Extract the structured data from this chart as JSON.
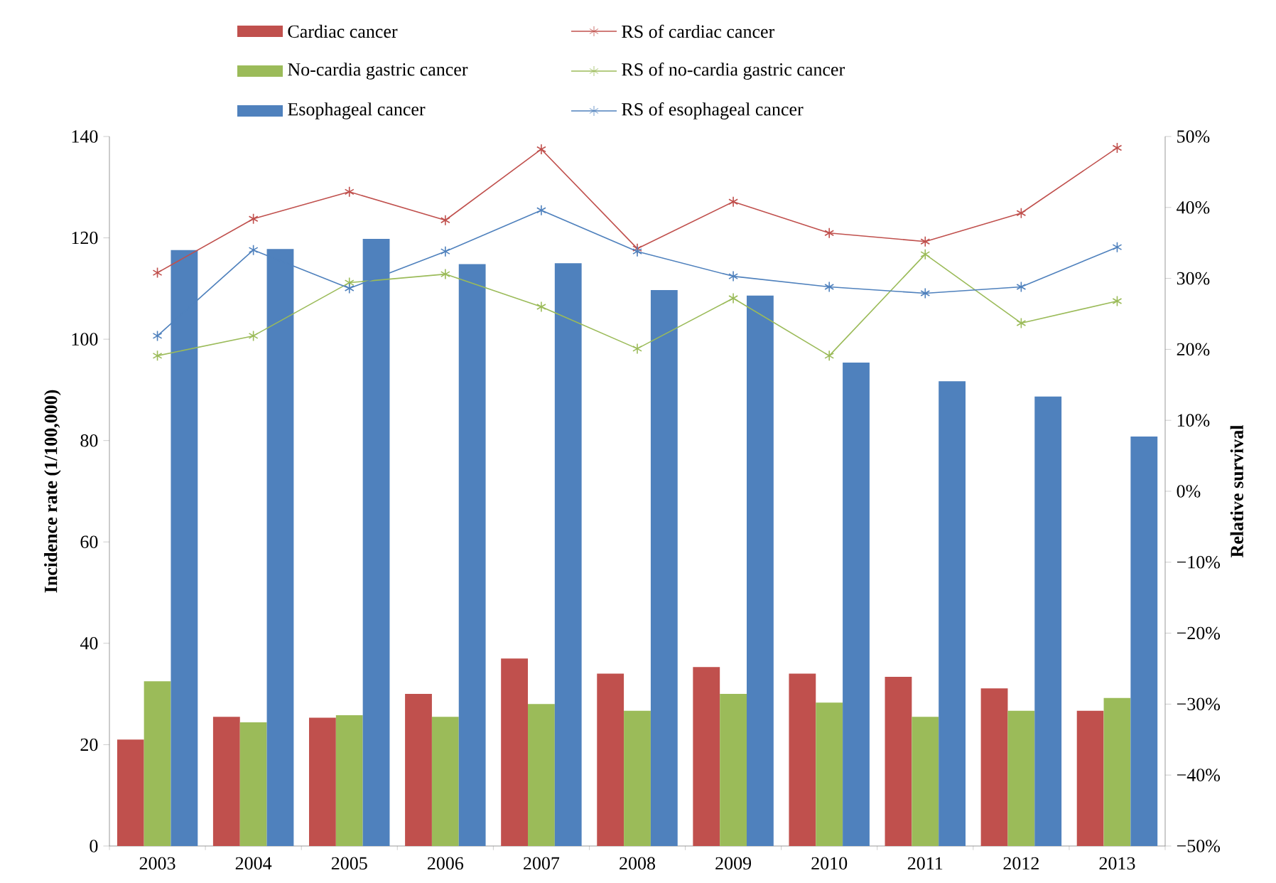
{
  "chart_data": {
    "type": "bar",
    "categories": [
      "2003",
      "2004",
      "2005",
      "2006",
      "2007",
      "2008",
      "2009",
      "2010",
      "2011",
      "2012",
      "2013"
    ],
    "ylabel": "Incidence rate (1/100,000)",
    "y2label": "Relative survival",
    "ylim": [
      0,
      140
    ],
    "yticks": [
      0,
      20,
      40,
      60,
      80,
      100,
      120,
      140
    ],
    "y2lim": [
      -50,
      50
    ],
    "y2ticks": [
      {
        "value": -50,
        "label": "−50%"
      },
      {
        "value": -40,
        "label": "−40%"
      },
      {
        "value": -30,
        "label": "−30%"
      },
      {
        "value": -20,
        "label": "−20%"
      },
      {
        "value": -10,
        "label": "−10%"
      },
      {
        "value": 0,
        "label": "0%"
      },
      {
        "value": 10,
        "label": "10%"
      },
      {
        "value": 20,
        "label": "20%"
      },
      {
        "value": 30,
        "label": "30%"
      },
      {
        "value": 40,
        "label": "40%"
      },
      {
        "value": 50,
        "label": "50%"
      }
    ],
    "legend": "top",
    "grid": false,
    "marker": "cross",
    "series": [
      {
        "name": "Cardiac cancer",
        "type": "bar",
        "color": "#c0504d",
        "values": [
          21.0,
          25.5,
          25.3,
          30.0,
          37.0,
          34.0,
          35.3,
          34.0,
          33.4,
          31.1,
          26.7
        ]
      },
      {
        "name": "No-cardia gastric cancer",
        "type": "bar",
        "color": "#9bbb59",
        "values": [
          32.5,
          24.4,
          25.8,
          25.5,
          28.0,
          26.7,
          30.0,
          28.3,
          25.5,
          26.7,
          29.2
        ]
      },
      {
        "name": "Esophageal cancer",
        "type": "bar",
        "color": "#4f81bd",
        "values": [
          117.6,
          117.8,
          119.8,
          114.8,
          115.0,
          109.7,
          108.6,
          95.4,
          91.7,
          88.7,
          80.8
        ]
      },
      {
        "name": "RS of cardiac cancer",
        "type": "line",
        "axis": "y2",
        "color": "#c0504d",
        "values": [
          30.8,
          38.4,
          42.2,
          38.2,
          48.2,
          34.2,
          40.8,
          36.4,
          35.2,
          39.2,
          48.4
        ]
      },
      {
        "name": "RS of no-cardia gastric cancer",
        "type": "line",
        "axis": "y2",
        "color": "#9bbb59",
        "values": [
          19.1,
          21.9,
          29.4,
          30.6,
          26.0,
          20.1,
          27.2,
          19.1,
          33.4,
          23.7,
          26.8
        ]
      },
      {
        "name": "RS of esophageal cancer",
        "type": "line",
        "axis": "y2",
        "color": "#4f81bd",
        "values": [
          21.9,
          34.0,
          28.6,
          33.8,
          39.6,
          33.8,
          30.3,
          28.8,
          27.9,
          28.8,
          34.4
        ]
      }
    ]
  }
}
